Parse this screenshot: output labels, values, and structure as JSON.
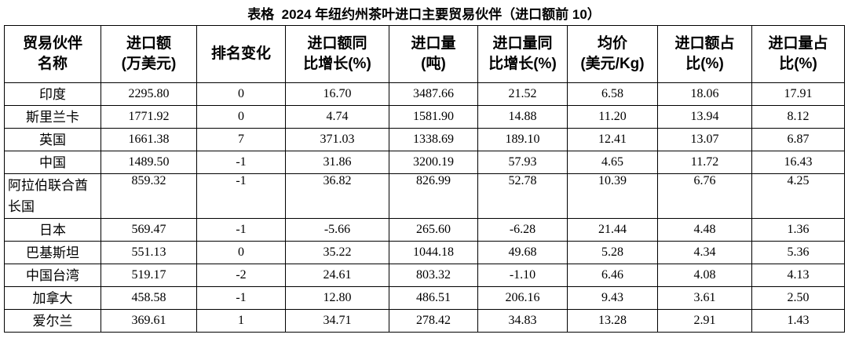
{
  "title": "表格  2024 年纽约州茶叶进口主要贸易伙伴（进口额前 10）",
  "table": {
    "header": [
      [
        "贸易伙伴",
        "名称"
      ],
      [
        "进口额",
        "(万美元)"
      ],
      [
        "排名变化"
      ],
      [
        "进口额同",
        "比增长(%)"
      ],
      [
        "进口量",
        "(吨)"
      ],
      [
        "进口量同",
        "比增长(%)"
      ],
      [
        "均价",
        "(美元/Kg)"
      ],
      [
        "进口额占",
        "比(%)"
      ],
      [
        "进口量占",
        "比(%)"
      ]
    ],
    "rows": [
      [
        "印度",
        "2295.80",
        "0",
        "16.70",
        "3487.66",
        "21.52",
        "6.58",
        "18.06",
        "17.91"
      ],
      [
        "斯里兰卡",
        "1771.92",
        "0",
        "4.74",
        "1581.90",
        "14.88",
        "11.20",
        "13.94",
        "8.12"
      ],
      [
        "英国",
        "1661.38",
        "7",
        "371.03",
        "1338.69",
        "189.10",
        "12.41",
        "13.07",
        "6.87"
      ],
      [
        "中国",
        "1489.50",
        "-1",
        "31.86",
        "3200.19",
        "57.93",
        "4.65",
        "11.72",
        "16.43"
      ],
      [
        "阿拉伯联合酋长国",
        "859.32",
        "-1",
        "36.82",
        "826.99",
        "52.78",
        "10.39",
        "6.76",
        "4.25"
      ],
      [
        "日本",
        "569.47",
        "-1",
        "-5.66",
        "265.60",
        "-6.28",
        "21.44",
        "4.48",
        "1.36"
      ],
      [
        "巴基斯坦",
        "551.13",
        "0",
        "35.22",
        "1044.18",
        "49.68",
        "5.28",
        "4.34",
        "5.36"
      ],
      [
        "中国台湾",
        "519.17",
        "-2",
        "24.61",
        "803.32",
        "-1.10",
        "6.46",
        "4.08",
        "4.13"
      ],
      [
        "加拿大",
        "458.58",
        "-1",
        "12.80",
        "486.51",
        "206.16",
        "9.43",
        "3.61",
        "2.50"
      ],
      [
        "爱尔兰",
        "369.61",
        "1",
        "34.71",
        "278.42",
        "34.83",
        "13.28",
        "2.91",
        "1.43"
      ]
    ]
  }
}
